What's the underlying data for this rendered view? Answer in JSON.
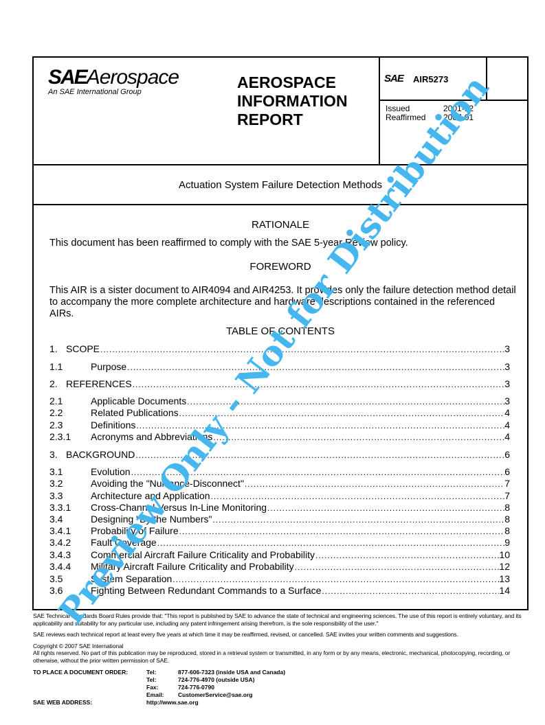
{
  "header": {
    "logo_sae": "SAE",
    "logo_aerospace": "Aerospace",
    "logo_tagline": "An SAE International Group",
    "report_type": [
      "AEROSPACE",
      "INFORMATION",
      "REPORT"
    ],
    "sae_mark": "SAE",
    "doc_number": "AIR5273",
    "issued_label": "Issued",
    "issued_value": "2001-12",
    "reaffirmed_label": "Reaffirmed",
    "reaffirmed_value": "2007-01"
  },
  "doc_title": "Actuation System Failure Detection Methods",
  "rationale": {
    "heading": "RATIONALE",
    "text": "This document has been reaffirmed to comply with the SAE 5-year Review policy."
  },
  "foreword": {
    "heading": "FOREWORD",
    "text": "This AIR is a sister document to AIR4094 and AIR4253.  It provides only the failure detection method detail to accompany the more complete architecture and hardware descriptions contained in the referenced AIRs."
  },
  "toc": {
    "heading": "TABLE OF CONTENTS",
    "entries": [
      {
        "num": "1.",
        "label": "SCOPE",
        "page": "3",
        "level": "top"
      },
      {
        "num": "1.1",
        "label": "Purpose",
        "page": "3",
        "level": "sub"
      },
      {
        "num": "2.",
        "label": "REFERENCES",
        "page": "3",
        "level": "top"
      },
      {
        "num": "2.1",
        "label": "Applicable Documents",
        "page": "3",
        "level": "sub"
      },
      {
        "num": "2.2",
        "label": "Related Publications",
        "page": "4",
        "level": "sub"
      },
      {
        "num": "2.3",
        "label": "Definitions",
        "page": "4",
        "level": "sub"
      },
      {
        "num": "2.3.1",
        "label": "Acronyms and Abbreviations",
        "page": "4",
        "level": "sub"
      },
      {
        "num": "3.",
        "label": "BACKGROUND",
        "page": "6",
        "level": "top"
      },
      {
        "num": "3.1",
        "label": "Evolution",
        "page": "6",
        "level": "sub"
      },
      {
        "num": "3.2",
        "label": "Avoiding the \"Nuisance-Disconnect\"",
        "page": "7",
        "level": "sub"
      },
      {
        "num": "3.3",
        "label": "Architecture and Application",
        "page": "7",
        "level": "sub"
      },
      {
        "num": "3.3.1",
        "label": "Cross-Channel Versus In-Line Monitoring",
        "page": "8",
        "level": "sub"
      },
      {
        "num": "3.4",
        "label": "Designing \"By the Numbers\"",
        "page": "8",
        "level": "sub"
      },
      {
        "num": "3.4.1",
        "label": "Probability of Failure",
        "page": "8",
        "level": "sub"
      },
      {
        "num": "3.4.2",
        "label": "Fault Coverage",
        "page": "9",
        "level": "sub"
      },
      {
        "num": "3.4.3",
        "label": "Commercial Aircraft Failure Criticality and Probability",
        "page": "10",
        "level": "sub"
      },
      {
        "num": "3.4.4",
        "label": "Military Aircraft Failure Criticality and Probability",
        "page": "12",
        "level": "sub"
      },
      {
        "num": "3.5",
        "label": "System Separation",
        "page": "13",
        "level": "sub"
      },
      {
        "num": "3.6",
        "label": "Fighting Between Redundant Commands to a Surface",
        "page": "14",
        "level": "sub"
      }
    ]
  },
  "footer": {
    "rules": "SAE Technical Standards Board Rules provide that: \"This report is published by SAE to advance the state of technical and engineering sciences. The use of this report is entirely voluntary, and its applicability and suitability for any particular use, including any patent infringement arising therefrom, is the sole responsibility of the user.\"",
    "review": "SAE reviews each technical report at least every five years at which time it may be reaffirmed, revised, or cancelled. SAE invites your written comments and suggestions.",
    "copyright": "Copyright © 2007 SAE International",
    "rights": "All rights reserved. No part of this publication may be reproduced, stored in a retrieval system or transmitted, in any form or by any means, electronic, mechanical, photocopying, recording, or otherwise, without the prior written permission of SAE.",
    "order_label": "TO PLACE A DOCUMENT ORDER:",
    "contacts": [
      {
        "k": "Tel:",
        "v": "877-606-7323 (inside USA and Canada)"
      },
      {
        "k": "Tel:",
        "v": "724-776-4970 (outside USA)"
      },
      {
        "k": "Fax:",
        "v": "724-776-0790"
      },
      {
        "k": "Email:",
        "v": "CustomerService@sae.org"
      }
    ],
    "web_label": "SAE WEB ADDRESS:",
    "web_value": "http://www.sae.org"
  },
  "watermark": {
    "text": "Preview Only - Not for Distribution",
    "color": "#45b6ee"
  }
}
